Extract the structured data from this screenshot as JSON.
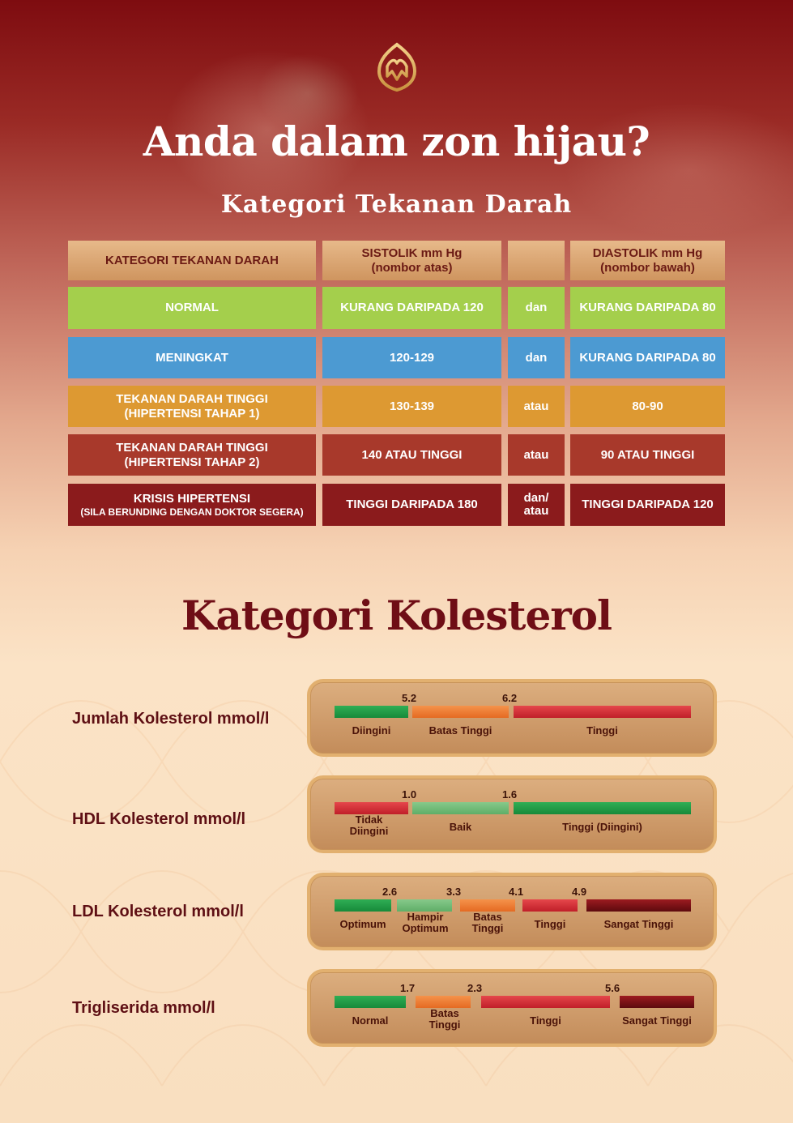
{
  "colors": {
    "accent": "#7e0c10",
    "normal": "#a4cf4c",
    "meningkat": "#4c9ad2",
    "tahap1": "#dd9932",
    "tahap2": "#a8392b",
    "krisis": "#8b1b1c"
  },
  "logo_icon": "gold-lotus-logo",
  "title": "Anda dalam zon hijau?",
  "bp_title": "Kategori Tekanan Darah",
  "bp_table": {
    "headers": [
      "KATEGORI TEKANAN DARAH",
      "SISTOLIK mm Hg\n(nombor atas)",
      "",
      "DIASTOLIK mm Hg\n(nombor bawah)"
    ],
    "rows": [
      {
        "category": "NORMAL",
        "sub": "",
        "systolic": "KURANG DARIPADA 120",
        "conj": "dan",
        "diastolic": "KURANG DARIPADA 80"
      },
      {
        "category": "MENINGKAT",
        "sub": "",
        "systolic": "120-129",
        "conj": "dan",
        "diastolic": "KURANG DARIPADA 80"
      },
      {
        "category": "TEKANAN DARAH TINGGI",
        "sub": "(HIPERTENSI TAHAP 1)",
        "systolic": "130-139",
        "conj": "atau",
        "diastolic": "80-90"
      },
      {
        "category": "TEKANAN DARAH TINGGI",
        "sub": "(HIPERTENSI TAHAP 2)",
        "systolic": "140 ATAU TINGGI",
        "conj": "atau",
        "diastolic": "90 ATAU TINGGI"
      },
      {
        "category": "KRISIS HIPERTENSI",
        "sub": "(SILA BERUNDING DENGAN DOKTOR SEGERA)",
        "systolic": "TINGGI DARIPADA 180",
        "conj": "dan/\natau",
        "diastolic": "TINGGI DARIPADA 120"
      }
    ]
  },
  "chol_title": "Kategori Kolesterol",
  "chol": [
    {
      "label": "Jumlah Kolesterol mmol/l",
      "thresholds": [
        "5.2",
        "6.2"
      ],
      "zones": [
        "Diingini",
        "Batas Tinggi",
        "Tinggi"
      ]
    },
    {
      "label": "HDL Kolesterol mmol/l",
      "thresholds": [
        "1.0",
        "1.6"
      ],
      "zones": [
        "Tidak\nDiingini",
        "Baik",
        "Tinggi (Diingini)"
      ]
    },
    {
      "label": "LDL Kolesterol mmol/l",
      "thresholds": [
        "2.6",
        "3.3",
        "4.1",
        "4.9"
      ],
      "zones": [
        "Optimum",
        "Hampir\nOptimum",
        "Batas\nTinggi",
        "Tinggi",
        "Sangat Tinggi"
      ]
    },
    {
      "label": "Trigliserida mmol/l",
      "thresholds": [
        "1.7",
        "2.3",
        "5.6"
      ],
      "zones": [
        "Normal",
        "Batas\nTinggi",
        "Tinggi",
        "Sangat Tinggi"
      ]
    }
  ]
}
